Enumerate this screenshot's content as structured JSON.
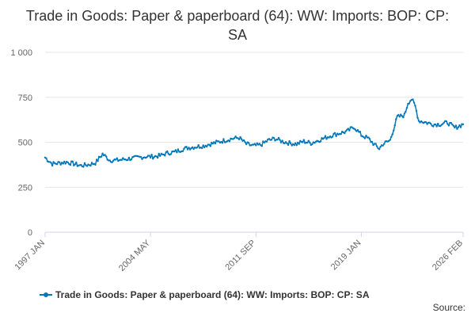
{
  "chart_data": {
    "type": "line",
    "title": "Trade in Goods: Paper & paperboard (64): WW: Imports: BOP: CP: SA",
    "xlabel": "",
    "ylabel": "",
    "ylim": [
      0,
      1000
    ],
    "yticks": [
      0,
      250,
      500,
      750,
      1000
    ],
    "ytick_labels": [
      "0",
      "250",
      "500",
      "750",
      "1 000"
    ],
    "xlim": [
      1997.0,
      2026.083
    ],
    "xticks": [
      1997.0,
      2004.333,
      2011.667,
      2019.0,
      2026.083
    ],
    "xtick_labels": [
      "1997 JAN",
      "2004 MAY",
      "2011 SEP",
      "2019 JAN",
      "2026 FEB"
    ],
    "grid": true,
    "legend_position": "bottom",
    "series": [
      {
        "name": "Trade in Goods: Paper & paperboard (64): WW: Imports: BOP: CP: SA",
        "color": "#0077bb",
        "x": [
          1997.0,
          1997.5,
          1998.0,
          1998.5,
          1999.0,
          1999.5,
          2000.0,
          2000.5,
          2001.0,
          2001.5,
          2002.0,
          2002.5,
          2003.0,
          2003.5,
          2004.0,
          2004.5,
          2005.0,
          2005.5,
          2006.0,
          2006.5,
          2007.0,
          2007.5,
          2008.0,
          2008.5,
          2009.0,
          2009.5,
          2010.0,
          2010.5,
          2011.0,
          2011.5,
          2012.0,
          2012.5,
          2013.0,
          2013.5,
          2014.0,
          2014.5,
          2015.0,
          2015.5,
          2016.0,
          2016.5,
          2017.0,
          2017.5,
          2018.0,
          2018.5,
          2019.0,
          2019.5,
          2020.0,
          2020.25,
          2020.5,
          2021.0,
          2021.5,
          2022.0,
          2022.25,
          2022.5,
          2022.75,
          2023.0,
          2023.5,
          2024.0,
          2024.5,
          2025.0,
          2025.5,
          2026.083
        ],
        "values": [
          415,
          380,
          385,
          390,
          380,
          370,
          375,
          385,
          435,
          400,
          400,
          405,
          410,
          415,
          420,
          420,
          425,
          440,
          445,
          460,
          470,
          475,
          480,
          490,
          500,
          510,
          520,
          525,
          490,
          480,
          485,
          510,
          520,
          505,
          495,
          490,
          505,
          495,
          510,
          525,
          540,
          550,
          560,
          585,
          540,
          520,
          480,
          465,
          490,
          510,
          640,
          650,
          720,
          740,
          700,
          620,
          610,
          600,
          600,
          610,
          580,
          600
        ]
      }
    ]
  },
  "legend": {
    "label": "Trade in Goods: Paper & paperboard (64): WW: Imports: BOP: CP: SA"
  },
  "footer": {
    "source_label": "Source:"
  }
}
